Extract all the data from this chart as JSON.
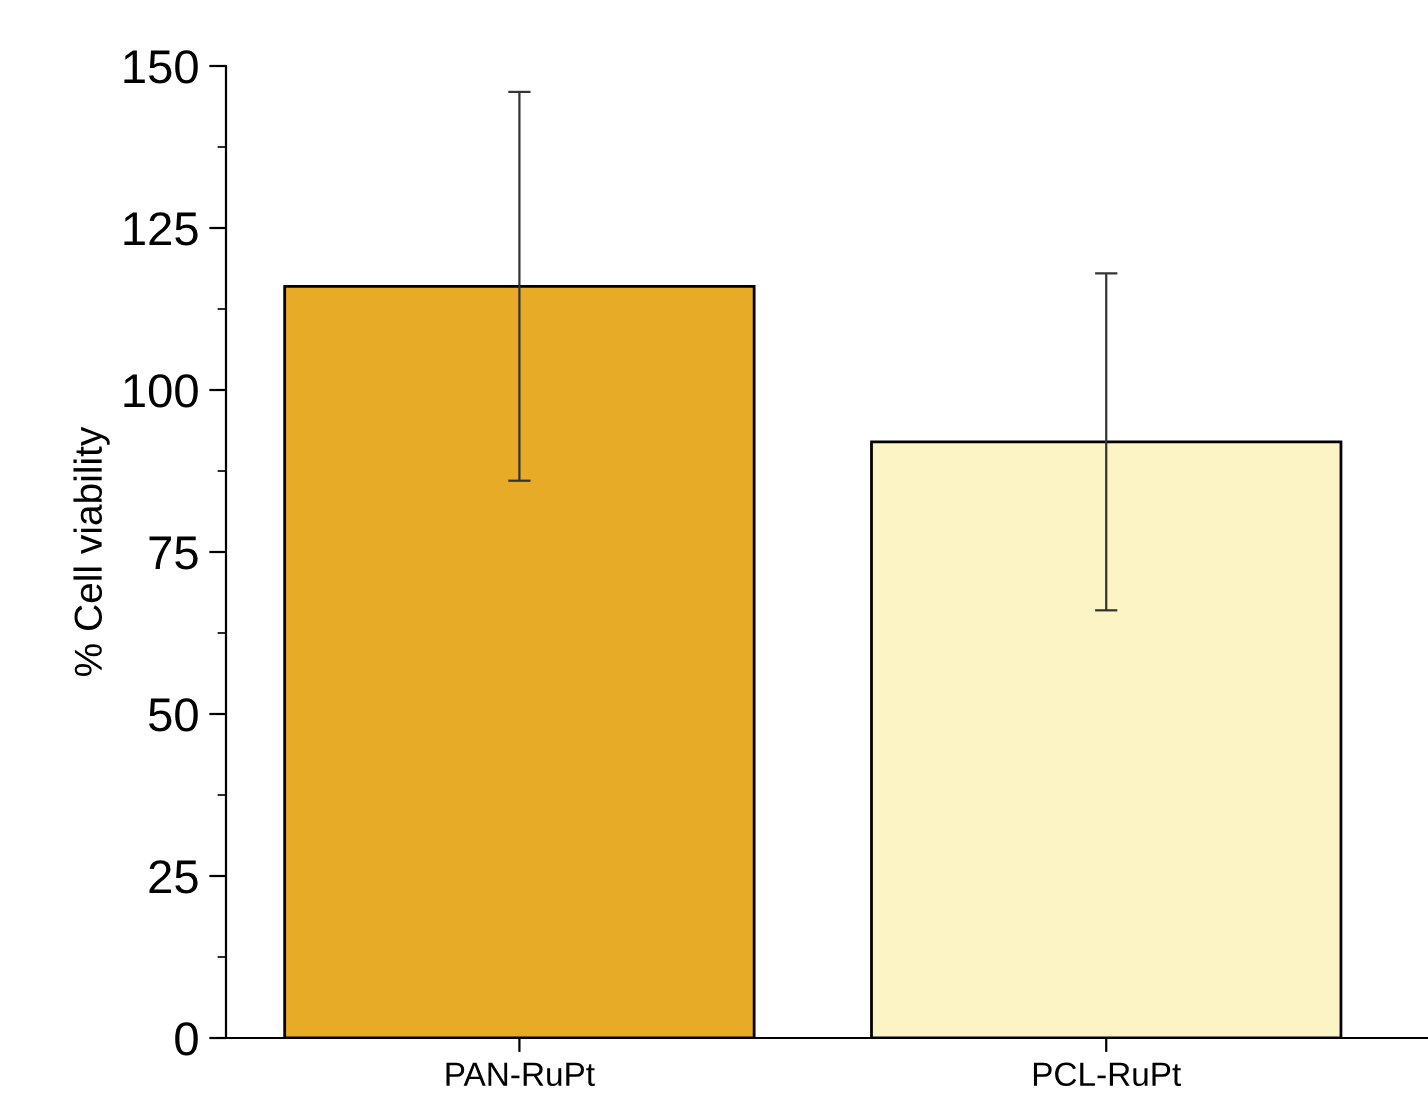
{
  "chart_data": {
    "type": "bar",
    "ylabel": "% Cell viability",
    "categories": [
      "PAN-RuPt",
      "PCL-RuPt"
    ],
    "values": [
      116,
      92
    ],
    "errors": [
      30,
      26
    ],
    "colors": [
      "#e8ab28",
      "#fdf4c6"
    ],
    "ylim": [
      0,
      150
    ],
    "yticks": [
      0,
      25,
      50,
      75,
      100,
      125,
      150
    ],
    "grid": false
  }
}
